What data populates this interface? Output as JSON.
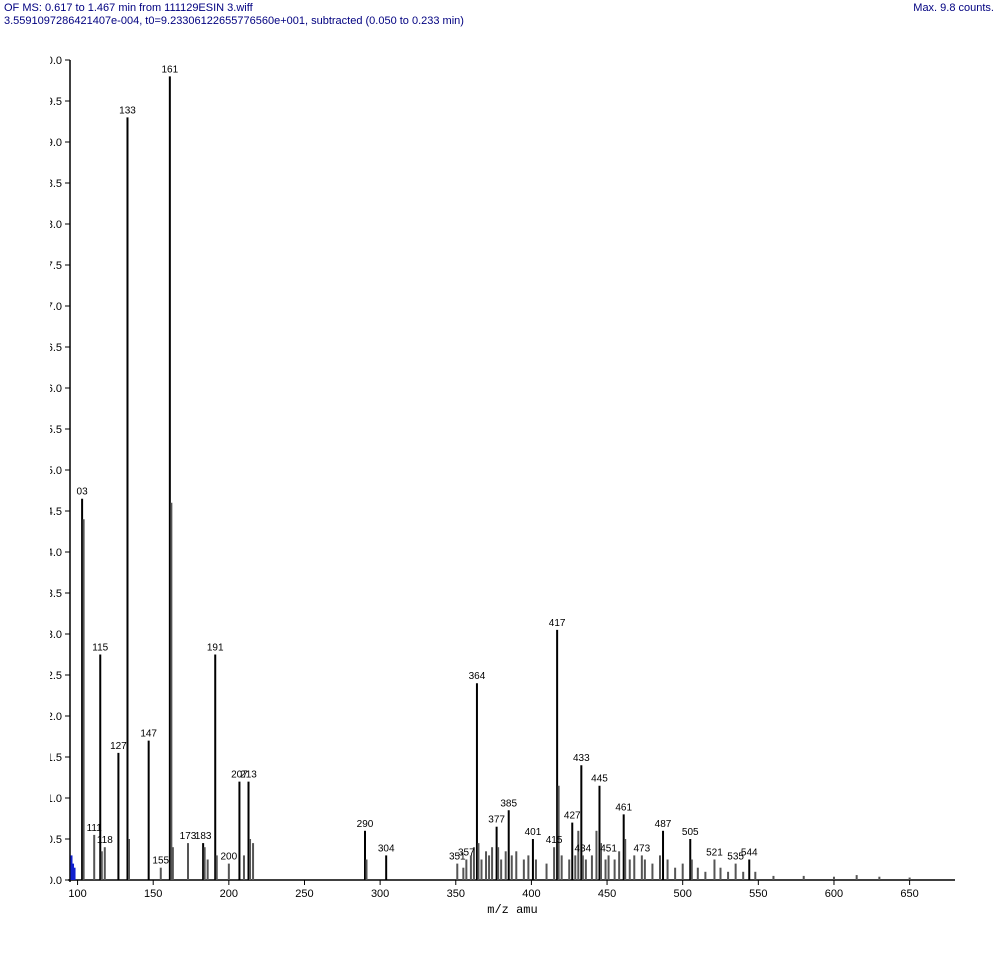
{
  "header": {
    "line1": "OF MS: 0.617 to 1.467 min from 111129ESIN  3.wiff",
    "line2": "3.5591097286421407e-004, t0=9.23306122655776560e+001, subtracted (0.050 to 0.233 min)",
    "right": "Max. 9.8 counts."
  },
  "chart": {
    "type": "mass-spectrum",
    "xlabel": "m/z  amu",
    "xlim": [
      95,
      680
    ],
    "ylim": [
      0.0,
      10.0
    ],
    "ytick_step": 0.5,
    "xtick_step": 50,
    "xtick_start": 100,
    "axis_color": "#000000",
    "background_color": "#ffffff",
    "peak_colors": {
      "main": "#000000",
      "alt": "#555555",
      "blue": "#1020d0"
    },
    "peaks": [
      {
        "mz": 96,
        "h": 0.3,
        "c": "blue"
      },
      {
        "mz": 97,
        "h": 0.2,
        "c": "blue"
      },
      {
        "mz": 98,
        "h": 0.15,
        "c": "blue"
      },
      {
        "mz": 103,
        "h": 4.65,
        "label": "03",
        "c": "main"
      },
      {
        "mz": 104,
        "h": 4.4,
        "c": "alt"
      },
      {
        "mz": 111,
        "h": 0.55,
        "label": "111",
        "c": "alt"
      },
      {
        "mz": 115,
        "h": 2.75,
        "label": "115",
        "c": "main"
      },
      {
        "mz": 116,
        "h": 0.35,
        "c": "alt"
      },
      {
        "mz": 118,
        "h": 0.4,
        "label": "118",
        "c": "alt"
      },
      {
        "mz": 127,
        "h": 1.55,
        "label": "127",
        "c": "main"
      },
      {
        "mz": 133,
        "h": 9.3,
        "label": "133",
        "c": "main"
      },
      {
        "mz": 134,
        "h": 0.5,
        "c": "alt"
      },
      {
        "mz": 147,
        "h": 1.7,
        "label": "147",
        "c": "main"
      },
      {
        "mz": 155,
        "h": 0.15,
        "label": "155",
        "c": "alt"
      },
      {
        "mz": 161,
        "h": 9.8,
        "label": "161",
        "c": "main"
      },
      {
        "mz": 162,
        "h": 4.6,
        "c": "alt"
      },
      {
        "mz": 163,
        "h": 0.4,
        "c": "alt"
      },
      {
        "mz": 173,
        "h": 0.45,
        "label": "173",
        "c": "alt"
      },
      {
        "mz": 183,
        "h": 0.45,
        "label": "183",
        "c": "main"
      },
      {
        "mz": 184,
        "h": 0.4,
        "c": "alt"
      },
      {
        "mz": 186,
        "h": 0.25,
        "c": "alt"
      },
      {
        "mz": 191,
        "h": 2.75,
        "label": "191",
        "c": "main"
      },
      {
        "mz": 192,
        "h": 0.3,
        "c": "alt"
      },
      {
        "mz": 200,
        "h": 0.2,
        "label": "200",
        "c": "alt"
      },
      {
        "mz": 207,
        "h": 1.2,
        "label": "207",
        "c": "main"
      },
      {
        "mz": 210,
        "h": 0.3,
        "c": "alt"
      },
      {
        "mz": 213,
        "h": 1.2,
        "label": "213",
        "c": "main"
      },
      {
        "mz": 214,
        "h": 0.5,
        "c": "alt"
      },
      {
        "mz": 216,
        "h": 0.45,
        "c": "alt"
      },
      {
        "mz": 290,
        "h": 0.6,
        "label": "290",
        "c": "main"
      },
      {
        "mz": 291,
        "h": 0.25,
        "c": "alt"
      },
      {
        "mz": 304,
        "h": 0.3,
        "label": "304",
        "c": "main"
      },
      {
        "mz": 351,
        "h": 0.2,
        "label": "351",
        "c": "alt"
      },
      {
        "mz": 355,
        "h": 0.15,
        "c": "alt"
      },
      {
        "mz": 357,
        "h": 0.25,
        "label": "357",
        "c": "alt"
      },
      {
        "mz": 360,
        "h": 0.3,
        "c": "alt"
      },
      {
        "mz": 362,
        "h": 0.4,
        "c": "alt"
      },
      {
        "mz": 364,
        "h": 2.4,
        "label": "364",
        "c": "main"
      },
      {
        "mz": 365,
        "h": 0.45,
        "c": "alt"
      },
      {
        "mz": 367,
        "h": 0.25,
        "c": "alt"
      },
      {
        "mz": 370,
        "h": 0.35,
        "c": "alt"
      },
      {
        "mz": 372,
        "h": 0.3,
        "c": "alt"
      },
      {
        "mz": 374,
        "h": 0.4,
        "c": "alt"
      },
      {
        "mz": 377,
        "h": 0.65,
        "label": "377",
        "c": "main"
      },
      {
        "mz": 378,
        "h": 0.4,
        "c": "alt"
      },
      {
        "mz": 380,
        "h": 0.25,
        "c": "alt"
      },
      {
        "mz": 383,
        "h": 0.35,
        "c": "alt"
      },
      {
        "mz": 385,
        "h": 0.85,
        "label": "385",
        "c": "main"
      },
      {
        "mz": 387,
        "h": 0.3,
        "c": "alt"
      },
      {
        "mz": 390,
        "h": 0.35,
        "c": "alt"
      },
      {
        "mz": 395,
        "h": 0.25,
        "c": "alt"
      },
      {
        "mz": 398,
        "h": 0.3,
        "c": "alt"
      },
      {
        "mz": 401,
        "h": 0.5,
        "label": "401",
        "c": "main"
      },
      {
        "mz": 403,
        "h": 0.25,
        "c": "alt"
      },
      {
        "mz": 410,
        "h": 0.2,
        "c": "alt"
      },
      {
        "mz": 415,
        "h": 0.4,
        "label": "415",
        "c": "alt"
      },
      {
        "mz": 417,
        "h": 3.05,
        "label": "417",
        "c": "main"
      },
      {
        "mz": 418,
        "h": 1.15,
        "c": "alt"
      },
      {
        "mz": 420,
        "h": 0.3,
        "c": "alt"
      },
      {
        "mz": 425,
        "h": 0.25,
        "c": "alt"
      },
      {
        "mz": 427,
        "h": 0.7,
        "label": "427",
        "c": "main"
      },
      {
        "mz": 429,
        "h": 0.3,
        "c": "alt"
      },
      {
        "mz": 431,
        "h": 0.6,
        "c": "alt"
      },
      {
        "mz": 433,
        "h": 1.4,
        "label": "433",
        "c": "main"
      },
      {
        "mz": 434,
        "h": 0.3,
        "label": "434",
        "c": "alt"
      },
      {
        "mz": 436,
        "h": 0.25,
        "c": "alt"
      },
      {
        "mz": 440,
        "h": 0.3,
        "c": "alt"
      },
      {
        "mz": 443,
        "h": 0.6,
        "c": "alt"
      },
      {
        "mz": 445,
        "h": 1.15,
        "label": "445",
        "c": "main"
      },
      {
        "mz": 446,
        "h": 0.45,
        "c": "alt"
      },
      {
        "mz": 449,
        "h": 0.25,
        "c": "alt"
      },
      {
        "mz": 451,
        "h": 0.3,
        "label": "451",
        "c": "alt"
      },
      {
        "mz": 455,
        "h": 0.25,
        "c": "alt"
      },
      {
        "mz": 458,
        "h": 0.35,
        "c": "alt"
      },
      {
        "mz": 461,
        "h": 0.8,
        "label": "461",
        "c": "main"
      },
      {
        "mz": 462,
        "h": 0.5,
        "c": "alt"
      },
      {
        "mz": 465,
        "h": 0.25,
        "c": "alt"
      },
      {
        "mz": 468,
        "h": 0.3,
        "c": "alt"
      },
      {
        "mz": 473,
        "h": 0.3,
        "label": "473",
        "c": "alt"
      },
      {
        "mz": 475,
        "h": 0.25,
        "c": "alt"
      },
      {
        "mz": 480,
        "h": 0.2,
        "c": "alt"
      },
      {
        "mz": 485,
        "h": 0.3,
        "c": "alt"
      },
      {
        "mz": 487,
        "h": 0.6,
        "label": "487",
        "c": "main"
      },
      {
        "mz": 490,
        "h": 0.25,
        "c": "alt"
      },
      {
        "mz": 495,
        "h": 0.15,
        "c": "alt"
      },
      {
        "mz": 500,
        "h": 0.2,
        "c": "alt"
      },
      {
        "mz": 505,
        "h": 0.5,
        "label": "505",
        "c": "main"
      },
      {
        "mz": 506,
        "h": 0.25,
        "c": "alt"
      },
      {
        "mz": 510,
        "h": 0.15,
        "c": "alt"
      },
      {
        "mz": 515,
        "h": 0.1,
        "c": "alt"
      },
      {
        "mz": 521,
        "h": 0.25,
        "label": "521",
        "c": "alt"
      },
      {
        "mz": 525,
        "h": 0.15,
        "c": "alt"
      },
      {
        "mz": 530,
        "h": 0.1,
        "c": "alt"
      },
      {
        "mz": 535,
        "h": 0.2,
        "label": "535",
        "c": "alt"
      },
      {
        "mz": 540,
        "h": 0.1,
        "c": "alt"
      },
      {
        "mz": 544,
        "h": 0.25,
        "label": "544",
        "c": "main"
      },
      {
        "mz": 548,
        "h": 0.1,
        "c": "alt"
      },
      {
        "mz": 560,
        "h": 0.05,
        "c": "alt"
      },
      {
        "mz": 580,
        "h": 0.05,
        "c": "alt"
      },
      {
        "mz": 600,
        "h": 0.04,
        "c": "alt"
      },
      {
        "mz": 615,
        "h": 0.06,
        "c": "alt"
      },
      {
        "mz": 630,
        "h": 0.04,
        "c": "alt"
      },
      {
        "mz": 650,
        "h": 0.03,
        "c": "alt"
      }
    ],
    "label_fontsize": 10,
    "tick_fontsize": 11
  }
}
